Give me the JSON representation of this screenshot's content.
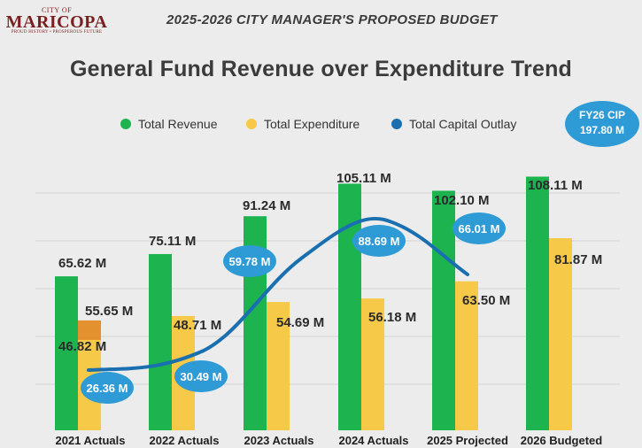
{
  "logo": {
    "top": "CITY OF",
    "name": "MARICOPA",
    "tagline": "PROUD HISTORY • PROSPEROUS FUTURE"
  },
  "header": "2025-2026 CITY MANAGER'S PROPOSED BUDGET",
  "cip": {
    "line1": "FY26 CIP",
    "line2": "197.80 M"
  },
  "colors": {
    "revenue": "#1db44f",
    "expenditure": "#f7c948",
    "capital": "#1a6fb0",
    "bubble": "#2e9bd6"
  },
  "chart_data": {
    "type": "bar",
    "title": "General Fund Revenue over Expenditure Trend",
    "categories": [
      "2021 Actuals",
      "2022 Actuals",
      "2023 Actuals",
      "2024 Actuals",
      "2025 Projected",
      "2026 Budgeted"
    ],
    "series": [
      {
        "name": "Total Revenue",
        "values": [
          65.62,
          75.11,
          91.24,
          105.11,
          102.1,
          108.11
        ],
        "labels": [
          "65.62 M",
          "75.11 M",
          "91.24 M",
          "105.11 M",
          "102.10 M",
          "108.11 M"
        ]
      },
      {
        "name": "Total Expenditure",
        "values": [
          46.82,
          48.71,
          54.69,
          56.18,
          63.5,
          81.87
        ],
        "labels": [
          "46.82 M",
          "48.71 M",
          "54.69 M",
          "56.18 M",
          "63.50 M",
          "81.87 M"
        ]
      },
      {
        "name": "Total Capital Outlay",
        "type": "line",
        "values": [
          26.36,
          30.49,
          59.78,
          88.69,
          66.01,
          null
        ],
        "labels": [
          "26.36 M",
          "30.49 M",
          "59.78 M",
          "88.69 M",
          "66.01 M",
          ""
        ]
      }
    ],
    "annotations": [
      "55.65 M"
    ],
    "legend": "top",
    "grid": true
  }
}
